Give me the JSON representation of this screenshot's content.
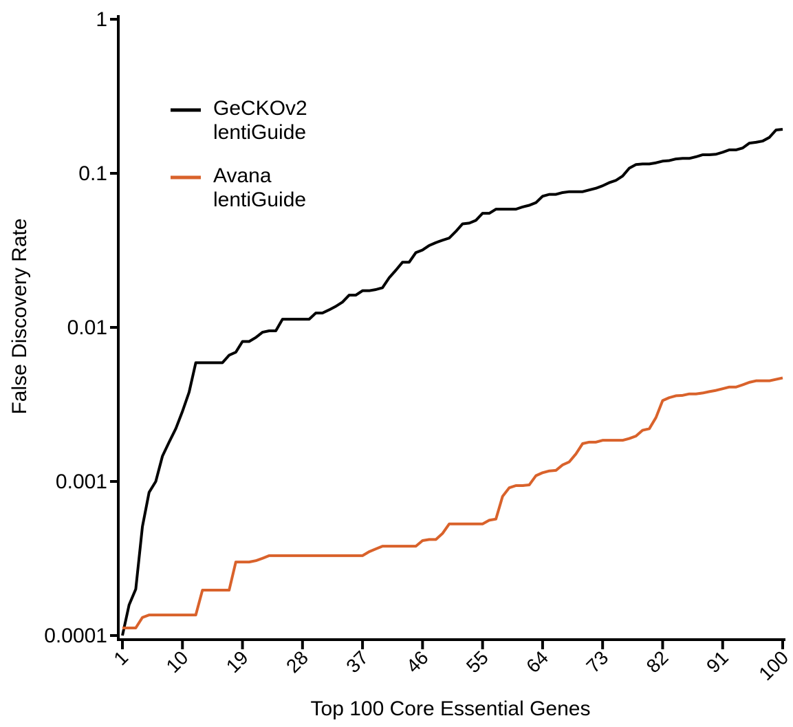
{
  "chart_data": {
    "type": "line",
    "x_label": "Top 100 Core Essential Genes",
    "y_label": "False Discovery Rate",
    "log_y": true,
    "legend": "upper left",
    "x": [
      1,
      2,
      3,
      4,
      5,
      6,
      7,
      8,
      9,
      10,
      11,
      12,
      13,
      14,
      15,
      16,
      17,
      18,
      19,
      20,
      21,
      22,
      23,
      24,
      25,
      26,
      27,
      28,
      29,
      30,
      31,
      32,
      33,
      34,
      35,
      36,
      37,
      38,
      39,
      40,
      41,
      42,
      43,
      44,
      45,
      46,
      47,
      48,
      49,
      50,
      51,
      52,
      53,
      54,
      55,
      56,
      57,
      58,
      59,
      60,
      61,
      62,
      63,
      64,
      65,
      66,
      67,
      68,
      69,
      70,
      71,
      72,
      73,
      74,
      75,
      76,
      77,
      78,
      79,
      80,
      81,
      82,
      83,
      84,
      85,
      86,
      87,
      88,
      89,
      90,
      91,
      92,
      93,
      94,
      95,
      96,
      97,
      98,
      99,
      100
    ],
    "series": [
      {
        "name": "GeCKOv2 lentiGuide",
        "color": "#000000",
        "values": [
          0.0001,
          0.000158,
          0.0002,
          0.00051,
          0.00085,
          0.001,
          0.00146,
          0.0018,
          0.0022,
          0.00285,
          0.0038,
          0.0059,
          0.0059,
          0.0059,
          0.0059,
          0.0059,
          0.0066,
          0.0069,
          0.0081,
          0.0081,
          0.0086,
          0.0093,
          0.0095,
          0.0095,
          0.0113,
          0.0113,
          0.0113,
          0.0113,
          0.0113,
          0.0124,
          0.0124,
          0.013,
          0.0137,
          0.0146,
          0.0162,
          0.0162,
          0.0173,
          0.0173,
          0.0176,
          0.0181,
          0.021,
          0.0235,
          0.0265,
          0.0265,
          0.0306,
          0.0318,
          0.034,
          0.0355,
          0.0368,
          0.038,
          0.042,
          0.047,
          0.0475,
          0.0495,
          0.055,
          0.055,
          0.0585,
          0.0585,
          0.0585,
          0.0585,
          0.0605,
          0.062,
          0.0645,
          0.071,
          0.073,
          0.073,
          0.075,
          0.076,
          0.076,
          0.076,
          0.078,
          0.08,
          0.083,
          0.087,
          0.09,
          0.096,
          0.108,
          0.114,
          0.115,
          0.115,
          0.117,
          0.12,
          0.121,
          0.124,
          0.125,
          0.125,
          0.128,
          0.132,
          0.132,
          0.133,
          0.137,
          0.142,
          0.142,
          0.146,
          0.157,
          0.159,
          0.162,
          0.171,
          0.191,
          0.193
        ]
      },
      {
        "name": "Avana lentiGuide",
        "color": "#d9622b",
        "values": [
          0.000112,
          0.000112,
          0.000112,
          0.000131,
          0.000136,
          0.000136,
          0.000136,
          0.000136,
          0.000136,
          0.000136,
          0.000136,
          0.000136,
          0.000197,
          0.000197,
          0.000197,
          0.000197,
          0.000197,
          0.0003,
          0.0003,
          0.0003,
          0.000306,
          0.000317,
          0.00033,
          0.00033,
          0.00033,
          0.00033,
          0.00033,
          0.00033,
          0.00033,
          0.00033,
          0.00033,
          0.00033,
          0.00033,
          0.00033,
          0.00033,
          0.00033,
          0.00033,
          0.00035,
          0.000365,
          0.00038,
          0.00038,
          0.00038,
          0.00038,
          0.00038,
          0.00038,
          0.000413,
          0.00042,
          0.00042,
          0.00046,
          0.00053,
          0.00053,
          0.00053,
          0.00053,
          0.00053,
          0.00053,
          0.00056,
          0.00057,
          0.0008,
          0.00091,
          0.00094,
          0.00094,
          0.00095,
          0.00109,
          0.00114,
          0.00117,
          0.00118,
          0.00128,
          0.00134,
          0.00151,
          0.00176,
          0.0018,
          0.0018,
          0.00185,
          0.00185,
          0.00185,
          0.00185,
          0.0019,
          0.00197,
          0.00215,
          0.0022,
          0.0026,
          0.00335,
          0.0035,
          0.0036,
          0.00362,
          0.0037,
          0.0037,
          0.00375,
          0.00383,
          0.0039,
          0.004,
          0.0041,
          0.0041,
          0.00424,
          0.0044,
          0.0045,
          0.0045,
          0.0045,
          0.0046,
          0.0047
        ]
      }
    ],
    "xlim": [
      1,
      100
    ],
    "xticks": [
      1,
      10,
      19,
      28,
      37,
      46,
      55,
      64,
      73,
      82,
      91,
      100
    ],
    "ylim": [
      0.0001,
      1
    ],
    "yticks": [
      0.0001,
      0.001,
      0.01,
      0.1,
      1
    ]
  }
}
